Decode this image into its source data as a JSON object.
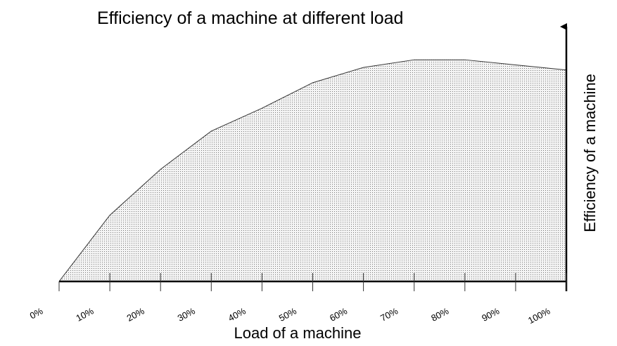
{
  "chart_data": {
    "type": "area",
    "title": "Efficiency of a machine at different load",
    "x_label": "Load of a machine",
    "y_label": "Efficiency of a machine",
    "x": [
      0,
      10,
      20,
      30,
      40,
      50,
      60,
      70,
      80,
      90,
      100
    ],
    "values": [
      0,
      26,
      44,
      59,
      68,
      78,
      84,
      87,
      87,
      85,
      83
    ],
    "xlim": [
      0,
      100
    ],
    "xticks": [
      {
        "value": 0,
        "label": "0%"
      },
      {
        "value": 10,
        "label": "10%"
      },
      {
        "value": 20,
        "label": "20%"
      },
      {
        "value": 30,
        "label": "30%"
      },
      {
        "value": 40,
        "label": "40%"
      },
      {
        "value": 50,
        "label": "50%"
      },
      {
        "value": 60,
        "label": "60%"
      },
      {
        "value": 70,
        "label": "70%"
      },
      {
        "value": 80,
        "label": "80%"
      },
      {
        "value": 90,
        "label": "90%"
      },
      {
        "value": 100,
        "label": "100%"
      }
    ],
    "ylim": [
      0,
      100
    ],
    "color": "#f2f2f2"
  }
}
